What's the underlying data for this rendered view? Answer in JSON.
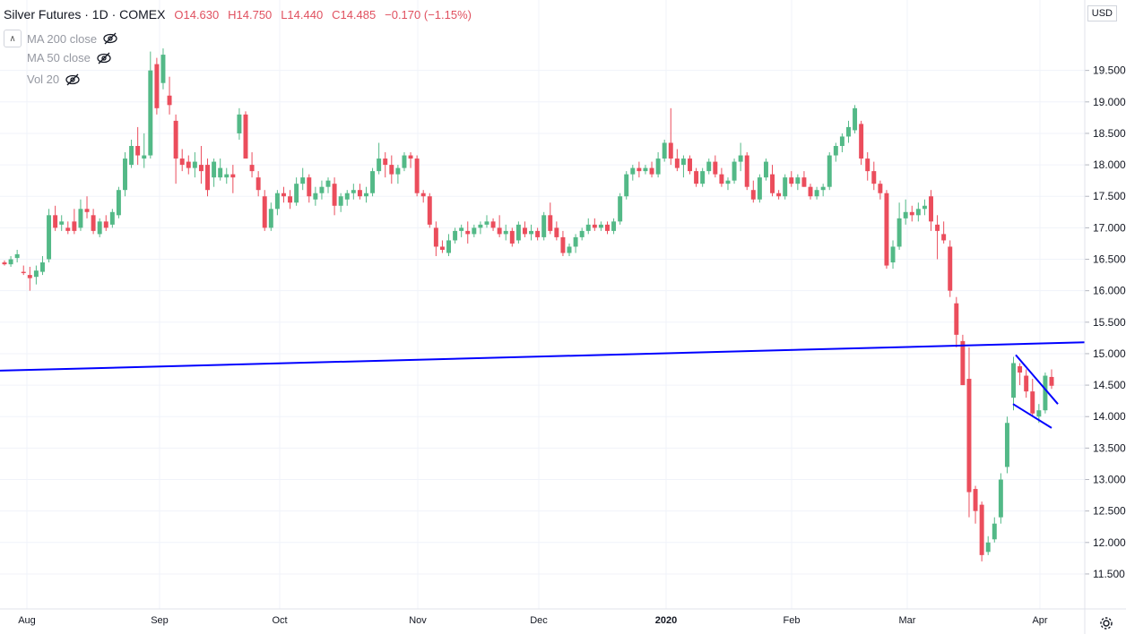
{
  "header": {
    "symbol": "Silver Futures · 1D · COMEX",
    "open": "O14.630",
    "high": "H14.750",
    "low": "L14.440",
    "close": "C14.485",
    "change": "−0.170 (−1.15%)"
  },
  "indicators": [
    {
      "label": "MA 200 close",
      "icon": "eye-crossed-icon"
    },
    {
      "label": "MA 50 close",
      "icon": "eye-crossed-icon"
    },
    {
      "label": "Vol 20",
      "icon": "eye-crossed-icon"
    }
  ],
  "currency": "USD",
  "colors": {
    "up": "#53b987",
    "down": "#eb4d5c",
    "trendline": "#0000ff",
    "grid": "#f0f3fa"
  },
  "chart_data": {
    "type": "candlestick",
    "y_ticks": [
      "19.500",
      "19.000",
      "18.500",
      "18.000",
      "17.500",
      "17.000",
      "16.500",
      "16.000",
      "15.500",
      "15.000",
      "14.500",
      "14.000",
      "13.500",
      "13.000",
      "12.500",
      "12.000",
      "11.500"
    ],
    "x_ticks": [
      "Aug",
      "Sep",
      "Oct",
      "Nov",
      "Dec",
      "2020",
      "Feb",
      "Mar",
      "Apr"
    ],
    "ylim": [
      11.3,
      20.05
    ],
    "candles": [
      [
        16.45,
        16.48,
        16.4,
        16.42
      ],
      [
        16.42,
        16.55,
        16.38,
        16.5
      ],
      [
        16.52,
        16.65,
        16.45,
        16.58
      ],
      [
        16.3,
        16.4,
        16.25,
        16.28
      ],
      [
        16.25,
        16.38,
        16.0,
        16.2
      ],
      [
        16.22,
        16.4,
        16.1,
        16.32
      ],
      [
        16.3,
        16.55,
        16.25,
        16.45
      ],
      [
        16.5,
        17.3,
        16.45,
        17.2
      ],
      [
        17.2,
        17.35,
        16.95,
        17.0
      ],
      [
        17.05,
        17.2,
        16.95,
        17.1
      ],
      [
        17.0,
        17.1,
        16.9,
        16.95
      ],
      [
        17.1,
        17.3,
        16.9,
        16.95
      ],
      [
        17.0,
        17.45,
        16.95,
        17.3
      ],
      [
        17.3,
        17.5,
        17.15,
        17.25
      ],
      [
        17.2,
        17.3,
        16.9,
        16.95
      ],
      [
        16.9,
        17.15,
        16.85,
        17.1
      ],
      [
        17.1,
        17.2,
        16.95,
        17.0
      ],
      [
        17.05,
        17.3,
        17.0,
        17.25
      ],
      [
        17.2,
        17.65,
        17.15,
        17.6
      ],
      [
        17.6,
        18.2,
        17.5,
        18.1
      ],
      [
        18.0,
        18.4,
        17.95,
        18.3
      ],
      [
        18.3,
        18.6,
        18.0,
        18.15
      ],
      [
        18.1,
        18.5,
        17.95,
        18.15
      ],
      [
        18.15,
        19.8,
        18.1,
        19.5
      ],
      [
        19.6,
        19.7,
        18.8,
        18.9
      ],
      [
        19.3,
        19.85,
        19.2,
        19.75
      ],
      [
        19.1,
        19.4,
        18.8,
        18.95
      ],
      [
        18.7,
        18.8,
        17.7,
        18.1
      ],
      [
        18.1,
        18.25,
        17.9,
        18.0
      ],
      [
        18.05,
        18.15,
        17.85,
        17.95
      ],
      [
        17.95,
        18.2,
        17.8,
        18.05
      ],
      [
        18.0,
        18.3,
        17.7,
        17.9
      ],
      [
        18.0,
        18.1,
        17.5,
        17.6
      ],
      [
        17.8,
        18.1,
        17.65,
        18.05
      ],
      [
        17.8,
        18.1,
        17.75,
        17.95
      ],
      [
        17.8,
        17.95,
        17.7,
        17.85
      ],
      [
        17.85,
        18.0,
        17.55,
        17.8
      ],
      [
        18.5,
        18.9,
        18.4,
        18.8
      ],
      [
        18.8,
        18.85,
        18.1,
        18.1
      ],
      [
        18.0,
        18.2,
        17.8,
        17.9
      ],
      [
        17.8,
        17.9,
        17.5,
        17.6
      ],
      [
        17.5,
        17.6,
        16.95,
        17.0
      ],
      [
        17.0,
        17.4,
        16.95,
        17.3
      ],
      [
        17.3,
        17.6,
        17.2,
        17.55
      ],
      [
        17.55,
        17.65,
        17.4,
        17.5
      ],
      [
        17.5,
        17.6,
        17.3,
        17.4
      ],
      [
        17.4,
        17.8,
        17.35,
        17.7
      ],
      [
        17.7,
        17.95,
        17.6,
        17.8
      ],
      [
        17.8,
        17.85,
        17.4,
        17.5
      ],
      [
        17.45,
        17.65,
        17.35,
        17.55
      ],
      [
        17.55,
        17.75,
        17.45,
        17.65
      ],
      [
        17.65,
        17.8,
        17.55,
        17.75
      ],
      [
        17.7,
        17.8,
        17.2,
        17.35
      ],
      [
        17.35,
        17.55,
        17.25,
        17.5
      ],
      [
        17.45,
        17.6,
        17.35,
        17.55
      ],
      [
        17.55,
        17.7,
        17.45,
        17.6
      ],
      [
        17.6,
        17.7,
        17.45,
        17.5
      ],
      [
        17.5,
        17.65,
        17.4,
        17.55
      ],
      [
        17.55,
        17.95,
        17.5,
        17.9
      ],
      [
        17.9,
        18.35,
        17.85,
        18.1
      ],
      [
        18.1,
        18.2,
        17.8,
        18.0
      ],
      [
        18.0,
        18.15,
        17.7,
        17.85
      ],
      [
        17.85,
        18.0,
        17.7,
        17.95
      ],
      [
        17.95,
        18.2,
        17.9,
        18.15
      ],
      [
        18.15,
        18.2,
        17.95,
        18.1
      ],
      [
        18.1,
        18.15,
        17.5,
        17.55
      ],
      [
        17.55,
        17.6,
        17.4,
        17.5
      ],
      [
        17.5,
        17.55,
        17.0,
        17.05
      ],
      [
        17.0,
        17.1,
        16.55,
        16.7
      ],
      [
        16.7,
        16.8,
        16.6,
        16.65
      ],
      [
        16.6,
        16.9,
        16.55,
        16.8
      ],
      [
        16.8,
        17.0,
        16.75,
        16.95
      ],
      [
        16.95,
        17.05,
        16.85,
        17.0
      ],
      [
        16.95,
        17.1,
        16.75,
        16.9
      ],
      [
        16.9,
        17.05,
        16.85,
        17.0
      ],
      [
        17.0,
        17.1,
        16.9,
        17.05
      ],
      [
        17.05,
        17.2,
        17.0,
        17.1
      ],
      [
        17.1,
        17.15,
        16.95,
        17.0
      ],
      [
        17.0,
        17.2,
        16.85,
        16.9
      ],
      [
        16.9,
        17.05,
        16.8,
        16.95
      ],
      [
        16.95,
        17.0,
        16.7,
        16.75
      ],
      [
        16.8,
        17.1,
        16.75,
        17.05
      ],
      [
        17.0,
        17.1,
        16.85,
        16.9
      ],
      [
        16.9,
        17.05,
        16.8,
        16.95
      ],
      [
        16.95,
        17.0,
        16.8,
        16.85
      ],
      [
        16.85,
        17.25,
        16.8,
        17.2
      ],
      [
        17.2,
        17.4,
        16.9,
        16.95
      ],
      [
        17.0,
        17.1,
        16.8,
        16.85
      ],
      [
        16.85,
        16.95,
        16.55,
        16.6
      ],
      [
        16.6,
        16.75,
        16.55,
        16.7
      ],
      [
        16.7,
        16.9,
        16.6,
        16.85
      ],
      [
        16.85,
        17.0,
        16.8,
        16.95
      ],
      [
        16.95,
        17.15,
        16.9,
        17.05
      ],
      [
        17.05,
        17.15,
        16.95,
        17.0
      ],
      [
        17.0,
        17.1,
        16.95,
        17.05
      ],
      [
        17.05,
        17.1,
        16.9,
        16.95
      ],
      [
        16.95,
        17.15,
        16.9,
        17.1
      ],
      [
        17.1,
        17.55,
        17.05,
        17.5
      ],
      [
        17.5,
        17.9,
        17.45,
        17.85
      ],
      [
        17.85,
        18.0,
        17.75,
        17.95
      ],
      [
        17.95,
        18.05,
        17.8,
        17.9
      ],
      [
        17.9,
        18.0,
        17.85,
        17.95
      ],
      [
        17.95,
        18.05,
        17.8,
        17.85
      ],
      [
        17.85,
        18.2,
        17.8,
        18.1
      ],
      [
        18.1,
        18.4,
        18.05,
        18.35
      ],
      [
        18.35,
        18.9,
        18.0,
        18.1
      ],
      [
        18.1,
        18.25,
        17.9,
        17.95
      ],
      [
        18.0,
        18.15,
        17.8,
        18.1
      ],
      [
        18.1,
        18.15,
        17.85,
        17.9
      ],
      [
        17.9,
        17.95,
        17.65,
        17.7
      ],
      [
        17.7,
        17.95,
        17.65,
        17.9
      ],
      [
        17.9,
        18.1,
        17.85,
        18.05
      ],
      [
        18.05,
        18.15,
        17.8,
        17.85
      ],
      [
        17.85,
        17.95,
        17.65,
        17.7
      ],
      [
        17.7,
        17.8,
        17.6,
        17.75
      ],
      [
        17.75,
        18.1,
        17.7,
        18.05
      ],
      [
        18.05,
        18.35,
        17.9,
        18.15
      ],
      [
        18.15,
        18.2,
        17.6,
        17.65
      ],
      [
        17.6,
        17.75,
        17.4,
        17.45
      ],
      [
        17.45,
        17.85,
        17.4,
        17.8
      ],
      [
        17.8,
        18.1,
        17.75,
        18.05
      ],
      [
        17.85,
        18.0,
        17.5,
        17.55
      ],
      [
        17.55,
        17.6,
        17.45,
        17.5
      ],
      [
        17.5,
        17.85,
        17.45,
        17.8
      ],
      [
        17.8,
        17.9,
        17.65,
        17.7
      ],
      [
        17.7,
        17.85,
        17.6,
        17.8
      ],
      [
        17.8,
        17.9,
        17.65,
        17.65
      ],
      [
        17.65,
        17.7,
        17.45,
        17.5
      ],
      [
        17.5,
        17.65,
        17.45,
        17.6
      ],
      [
        17.6,
        17.7,
        17.5,
        17.65
      ],
      [
        17.65,
        18.2,
        17.6,
        18.15
      ],
      [
        18.15,
        18.35,
        18.05,
        18.3
      ],
      [
        18.3,
        18.5,
        18.2,
        18.45
      ],
      [
        18.45,
        18.7,
        18.35,
        18.6
      ],
      [
        18.55,
        18.95,
        18.5,
        18.9
      ],
      [
        18.65,
        18.7,
        18.0,
        18.1
      ],
      [
        18.1,
        18.2,
        17.75,
        17.9
      ],
      [
        17.9,
        18.05,
        17.6,
        17.7
      ],
      [
        17.7,
        17.75,
        17.45,
        17.55
      ],
      [
        17.55,
        17.6,
        16.35,
        16.4
      ],
      [
        16.45,
        16.8,
        16.35,
        16.7
      ],
      [
        16.7,
        17.4,
        16.65,
        17.15
      ],
      [
        17.15,
        17.45,
        17.05,
        17.25
      ],
      [
        17.25,
        17.35,
        17.1,
        17.2
      ],
      [
        17.2,
        17.4,
        17.1,
        17.3
      ],
      [
        17.3,
        17.45,
        17.2,
        17.35
      ],
      [
        17.5,
        17.6,
        16.95,
        17.1
      ],
      [
        17.05,
        17.2,
        16.5,
        16.95
      ],
      [
        16.9,
        17.1,
        16.75,
        16.8
      ],
      [
        16.7,
        16.8,
        15.9,
        16.0
      ],
      [
        15.8,
        15.9,
        15.1,
        15.3
      ],
      [
        15.2,
        15.3,
        14.5,
        14.5
      ],
      [
        14.6,
        15.1,
        12.4,
        12.8
      ],
      [
        12.85,
        12.9,
        12.3,
        12.5
      ],
      [
        12.6,
        12.65,
        11.7,
        11.8
      ],
      [
        11.85,
        12.1,
        11.8,
        12.0
      ],
      [
        12.05,
        12.4,
        12.0,
        12.3
      ],
      [
        12.4,
        13.1,
        12.3,
        13.0
      ],
      [
        13.2,
        14.0,
        13.1,
        13.9
      ],
      [
        14.3,
        14.95,
        14.1,
        14.85
      ],
      [
        14.8,
        14.85,
        14.5,
        14.7
      ],
      [
        14.65,
        14.75,
        14.3,
        14.4
      ],
      [
        14.4,
        14.6,
        14.0,
        14.05
      ],
      [
        14.0,
        14.2,
        13.9,
        14.1
      ],
      [
        14.1,
        14.7,
        14.05,
        14.65
      ],
      [
        14.63,
        14.75,
        14.44,
        14.49
      ]
    ],
    "trendlines": [
      {
        "from": [
          "Aug",
          14.73
        ],
        "to": [
          "Apr",
          15.18
        ]
      },
      {
        "from": [
          "Apr",
          14.98
        ],
        "to": [
          "Apr",
          14.2
        ]
      },
      {
        "from": [
          "Apr",
          14.2
        ],
        "to": [
          "Apr",
          13.82
        ]
      }
    ]
  }
}
